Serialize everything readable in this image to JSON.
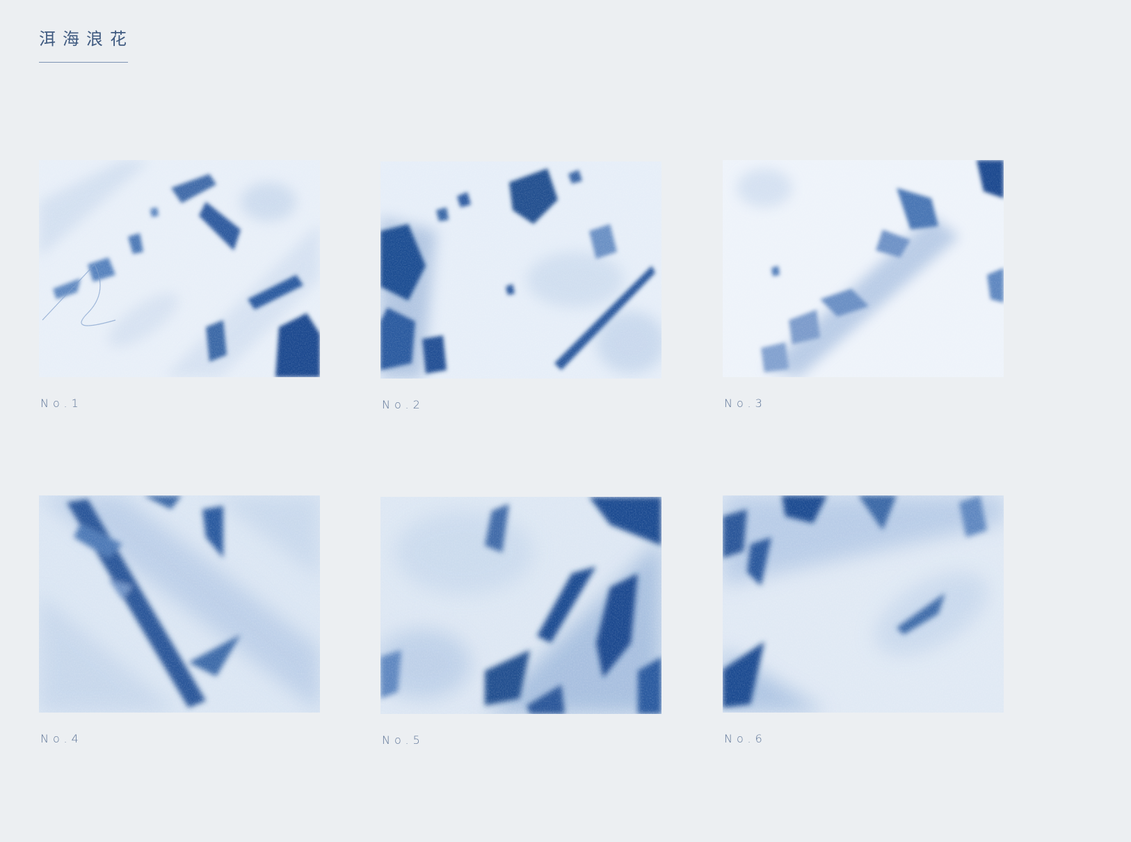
{
  "header": {
    "title": "洱海浪花"
  },
  "palette": {
    "background": "#eceff2",
    "indigo_deep": "#1d4a8f",
    "indigo_mid": "#4f7bb8",
    "indigo_light": "#a9c1de",
    "fabric_white": "#eef3f9",
    "label": "#5c7396"
  },
  "swatches": [
    {
      "label": "No.1",
      "pattern": "tie-dye-indigo"
    },
    {
      "label": "No.2",
      "pattern": "tie-dye-indigo"
    },
    {
      "label": "No.3",
      "pattern": "tie-dye-indigo"
    },
    {
      "label": "No.4",
      "pattern": "tie-dye-indigo"
    },
    {
      "label": "No.5",
      "pattern": "tie-dye-indigo"
    },
    {
      "label": "No.6",
      "pattern": "tie-dye-indigo"
    }
  ]
}
